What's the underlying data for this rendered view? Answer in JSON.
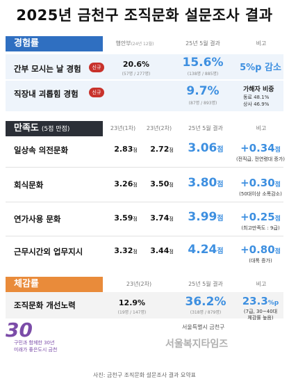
{
  "title": "2025년 금천구 조직문화 설문조사 결과",
  "sections": {
    "experience": {
      "tag": "경험률",
      "col_prev": "행안부",
      "col_prev_sub": "(24년 12월)",
      "col_now": "25년 5월 결과",
      "col_note": "비고",
      "rows": [
        {
          "label": "간부 모시는 날 경험",
          "badge": "신규",
          "prev": "20.6%",
          "prev_note": "(57명 / 277명)",
          "now": "15.6%",
          "now_note": "(138명 / 885명)",
          "diff": "5%p 감소"
        },
        {
          "label": "직장내 괴롭힘 경험",
          "badge": "신규",
          "now": "9.7%",
          "now_note": "(87명 / 893명)",
          "victim_title": "가해자 비중",
          "victim_1": "동료 48.1%",
          "victim_2": "상사 46.9%"
        }
      ]
    },
    "satisfaction": {
      "tag": "만족도",
      "tag_sub": "(5점 만점)",
      "col_a": "23년(1차)",
      "col_b": "23년(2차)",
      "col_now": "25년 5월 결과",
      "col_note": "비고",
      "unit": "점",
      "rows": [
        {
          "label": "일상속 의전문화",
          "a": "2.83",
          "b": "2.72",
          "now": "3.06",
          "diff": "+0.34",
          "note": "(전직급, 전연령대 증가)"
        },
        {
          "label": "회식문화",
          "a": "3.26",
          "b": "3.50",
          "now": "3.80",
          "diff": "+0.30",
          "note": "(50대이상 소폭감소)"
        },
        {
          "label": "연가사용 문화",
          "a": "3.59",
          "b": "3.74",
          "now": "3.99",
          "diff": "+0.25",
          "note": "(최고만족도 : 9급)"
        },
        {
          "label": "근무시간외 업무지시",
          "a": "3.32",
          "b": "3.44",
          "now": "4.24",
          "diff": "+0.80",
          "note": "(대폭 증가)"
        }
      ]
    },
    "perception": {
      "tag": "체감률",
      "col_prev": "23년(2차)",
      "col_now": "25년 5월 결과",
      "col_note": "비고",
      "rows": [
        {
          "label": "조직문화 개선노력",
          "prev": "12.9%",
          "prev_note": "(19명 / 147명)",
          "now": "36.2%",
          "now_note": "(318명 / 879명)",
          "diff": "23.3",
          "diff_unit": "%p",
          "note_1": "(7급, 30~40대",
          "note_2": "체감률 높음)"
        }
      ]
    }
  },
  "footer": {
    "logo_num": "30",
    "logo_line1": "구민과 함께한 30년",
    "logo_line2": "미래가 좋은도시 금천",
    "right_text": "서울특별시 금천구",
    "watermark": "서울복지타임즈",
    "caption": "사진: 금천구 조직문화 설문조사 결과 요약표"
  },
  "colors": {
    "experience_tag": "#2f6fc1",
    "satisfaction_tag": "#2b2f37",
    "perception_tag": "#e98b3a",
    "highlight_blue": "#3d8fe0",
    "badge_red": "#c8322b"
  }
}
